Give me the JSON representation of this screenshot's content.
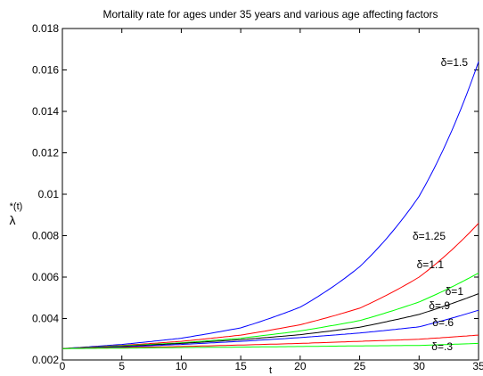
{
  "chart_data": {
    "type": "line",
    "title": "Mortality rate for ages under 35 years and various age affecting factors",
    "xlabel": "t",
    "ylabel": {
      "superscript": "*(t)",
      "symbol": "λ"
    },
    "xlim": [
      0,
      35
    ],
    "ylim": [
      0.002,
      0.018
    ],
    "xticks": [
      0,
      5,
      10,
      15,
      20,
      25,
      30,
      35
    ],
    "yticks": [
      0.002,
      0.004,
      0.006,
      0.008,
      0.01,
      0.012,
      0.014,
      0.016,
      0.018
    ],
    "ytick_labels": [
      "0.002",
      "0.004",
      "0.006",
      "0.008",
      "0.01",
      "0.012",
      "0.014",
      "0.016",
      "0.018"
    ],
    "grid": false,
    "series": [
      {
        "name": "δ=1.5",
        "color": "#0000ff",
        "delta": 1.5,
        "x": [
          0,
          5,
          10,
          15,
          20,
          25,
          30,
          35
        ],
        "y": [
          0.00255,
          0.00275,
          0.00305,
          0.00355,
          0.00455,
          0.0065,
          0.0099,
          0.0164
        ]
      },
      {
        "name": "δ=1.25",
        "color": "#ff0000",
        "delta": 1.25,
        "x": [
          0,
          5,
          10,
          15,
          20,
          25,
          30,
          35
        ],
        "y": [
          0.00255,
          0.0027,
          0.0029,
          0.0032,
          0.0037,
          0.0045,
          0.006,
          0.0086
        ]
      },
      {
        "name": "δ=1.1",
        "color": "#00ff00",
        "delta": 1.1,
        "x": [
          0,
          5,
          10,
          15,
          20,
          25,
          30,
          35
        ],
        "y": [
          0.00255,
          0.00268,
          0.00283,
          0.00305,
          0.0034,
          0.0039,
          0.0048,
          0.0062
        ]
      },
      {
        "name": "δ=1",
        "color": "#000000",
        "delta": 1.0,
        "x": [
          0,
          5,
          10,
          15,
          20,
          25,
          30,
          35
        ],
        "y": [
          0.00255,
          0.00265,
          0.0028,
          0.00298,
          0.00322,
          0.00358,
          0.0042,
          0.0052
        ]
      },
      {
        "name": "δ=.9",
        "color": "#0000ff",
        "delta": 0.9,
        "x": [
          0,
          5,
          10,
          15,
          20,
          25,
          30,
          35
        ],
        "y": [
          0.00255,
          0.00263,
          0.00275,
          0.0029,
          0.00308,
          0.0033,
          0.0036,
          0.0044
        ]
      },
      {
        "name": "δ=.6",
        "color": "#ff0000",
        "delta": 0.6,
        "x": [
          0,
          5,
          10,
          15,
          20,
          25,
          30,
          35
        ],
        "y": [
          0.00255,
          0.0026,
          0.00265,
          0.00272,
          0.0028,
          0.0029,
          0.003,
          0.0032
        ]
      },
      {
        "name": "δ=.3",
        "color": "#00ff00",
        "delta": 0.3,
        "x": [
          0,
          5,
          10,
          15,
          20,
          25,
          30,
          35
        ],
        "y": [
          0.00255,
          0.00257,
          0.0026,
          0.00262,
          0.00265,
          0.00268,
          0.0027,
          0.0028
        ]
      }
    ]
  }
}
